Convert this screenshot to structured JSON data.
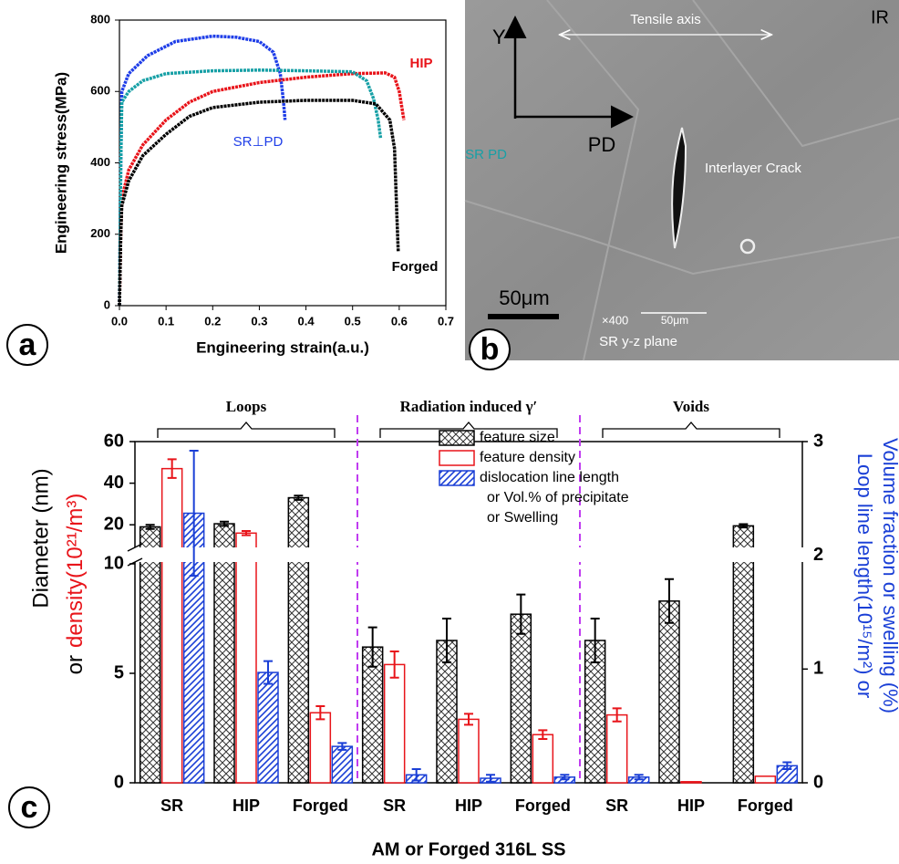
{
  "panel_labels": [
    "a",
    "b",
    "c"
  ],
  "chart_data": [
    {
      "type": "line",
      "x_label": "Engineering strain(a.u.)",
      "y_label": "Engineering stress(MPa)",
      "xlim": [
        0,
        0.7
      ],
      "xticks": [
        {
          "value": 0,
          "label": "0.0"
        },
        0.1,
        0.2,
        0.3,
        0.4,
        0.5,
        0.6,
        0.7
      ],
      "ylim": [
        0,
        800
      ],
      "yticks": [
        0,
        200,
        400,
        600,
        800
      ],
      "series": [
        {
          "name": "SR⊥PD",
          "color": "#1f3ee8",
          "x": [
            0,
            0.003,
            0.005,
            0.02,
            0.06,
            0.12,
            0.2,
            0.25,
            0.3,
            0.33,
            0.345,
            0.352,
            0.355
          ],
          "values": [
            0,
            400,
            600,
            650,
            700,
            740,
            755,
            752,
            740,
            710,
            650,
            570,
            520
          ]
        },
        {
          "name": "HIP",
          "color": "#e8141a",
          "x": [
            0,
            0.003,
            0.005,
            0.02,
            0.05,
            0.1,
            0.15,
            0.2,
            0.3,
            0.4,
            0.5,
            0.57,
            0.59,
            0.6,
            0.61
          ],
          "values": [
            0,
            200,
            300,
            380,
            450,
            520,
            570,
            600,
            625,
            640,
            650,
            652,
            640,
            600,
            520
          ]
        },
        {
          "name": "SR PD",
          "color": "#17a0a6",
          "x": [
            0,
            0.003,
            0.005,
            0.02,
            0.05,
            0.1,
            0.2,
            0.3,
            0.4,
            0.5,
            0.53,
            0.545,
            0.555,
            0.56
          ],
          "values": [
            0,
            400,
            570,
            600,
            630,
            650,
            658,
            660,
            658,
            655,
            630,
            580,
            520,
            470
          ]
        },
        {
          "name": "Forged",
          "color": "#000000",
          "x": [
            0,
            0.003,
            0.005,
            0.02,
            0.05,
            0.1,
            0.15,
            0.2,
            0.3,
            0.4,
            0.5,
            0.55,
            0.58,
            0.59,
            0.595,
            0.598
          ],
          "values": [
            0,
            200,
            280,
            350,
            420,
            480,
            530,
            555,
            570,
            575,
            575,
            565,
            520,
            440,
            250,
            150
          ]
        }
      ]
    },
    {
      "type": "bar",
      "groups": [
        "Loops",
        "Radiation induced γ′",
        "Voids"
      ],
      "categories": [
        "SR",
        "HIP",
        "Forged",
        "SR",
        "HIP",
        "Forged",
        "SR",
        "HIP",
        "Forged"
      ],
      "x_label": "AM or Forged 316L SS",
      "y_label": "Diameter (nm)",
      "y_label_connector": "or",
      "y_label_density": "density(10²¹/m³)",
      "y2_label": [
        "Loop line length(10¹⁵/m²) or",
        "Volume fraction or swelling (%)"
      ],
      "ylim_lower": [
        0,
        10
      ],
      "ylim_upper": [
        10,
        60
      ],
      "yticks": [
        0,
        5,
        10,
        20,
        40,
        60
      ],
      "y2lim": [
        0,
        3
      ],
      "y2ticks": [
        0,
        1,
        2,
        3
      ],
      "series": [
        {
          "name": "feature size",
          "color": "#000000",
          "pattern": "crosshatch",
          "values": [
            19,
            20.5,
            33,
            6.2,
            6.5,
            7.7,
            6.5,
            8.3,
            19.5
          ],
          "errors": [
            1,
            1,
            1,
            0.9,
            1.0,
            0.9,
            1.0,
            1.0,
            0.8
          ]
        },
        {
          "name": "feature density",
          "color": "#e8141a",
          "pattern": "open",
          "values": [
            47,
            16,
            3.2,
            5.4,
            2.9,
            2.2,
            3.1,
            0.05,
            0.3
          ],
          "errors": [
            4.5,
            1,
            0.3,
            0.6,
            0.25,
            0.2,
            0.3,
            null,
            null
          ]
        },
        {
          "name": [
            "dislocation line length",
            "or Vol.% of precipitate",
            "or Swelling"
          ],
          "color": "#1a3fd6",
          "pattern": "diagonal",
          "axis": "y2",
          "values": [
            2.37,
            0.97,
            0.32,
            0.07,
            0.04,
            0.05,
            0.05,
            null,
            0.15
          ],
          "errors": [
            0.55,
            0.1,
            0.03,
            0.05,
            0.03,
            0.02,
            0.02,
            null,
            0.03
          ]
        }
      ]
    }
  ],
  "micrograph": {
    "axis_y": "Y",
    "axis_x": "PD",
    "tensile_axis": "Tensile axis",
    "corner": "IR",
    "feature": "Interlayer Crack",
    "scale_bar": "50μm",
    "magnification": "×400",
    "inset_scale": "50μm",
    "plane": "SR y-z plane"
  }
}
